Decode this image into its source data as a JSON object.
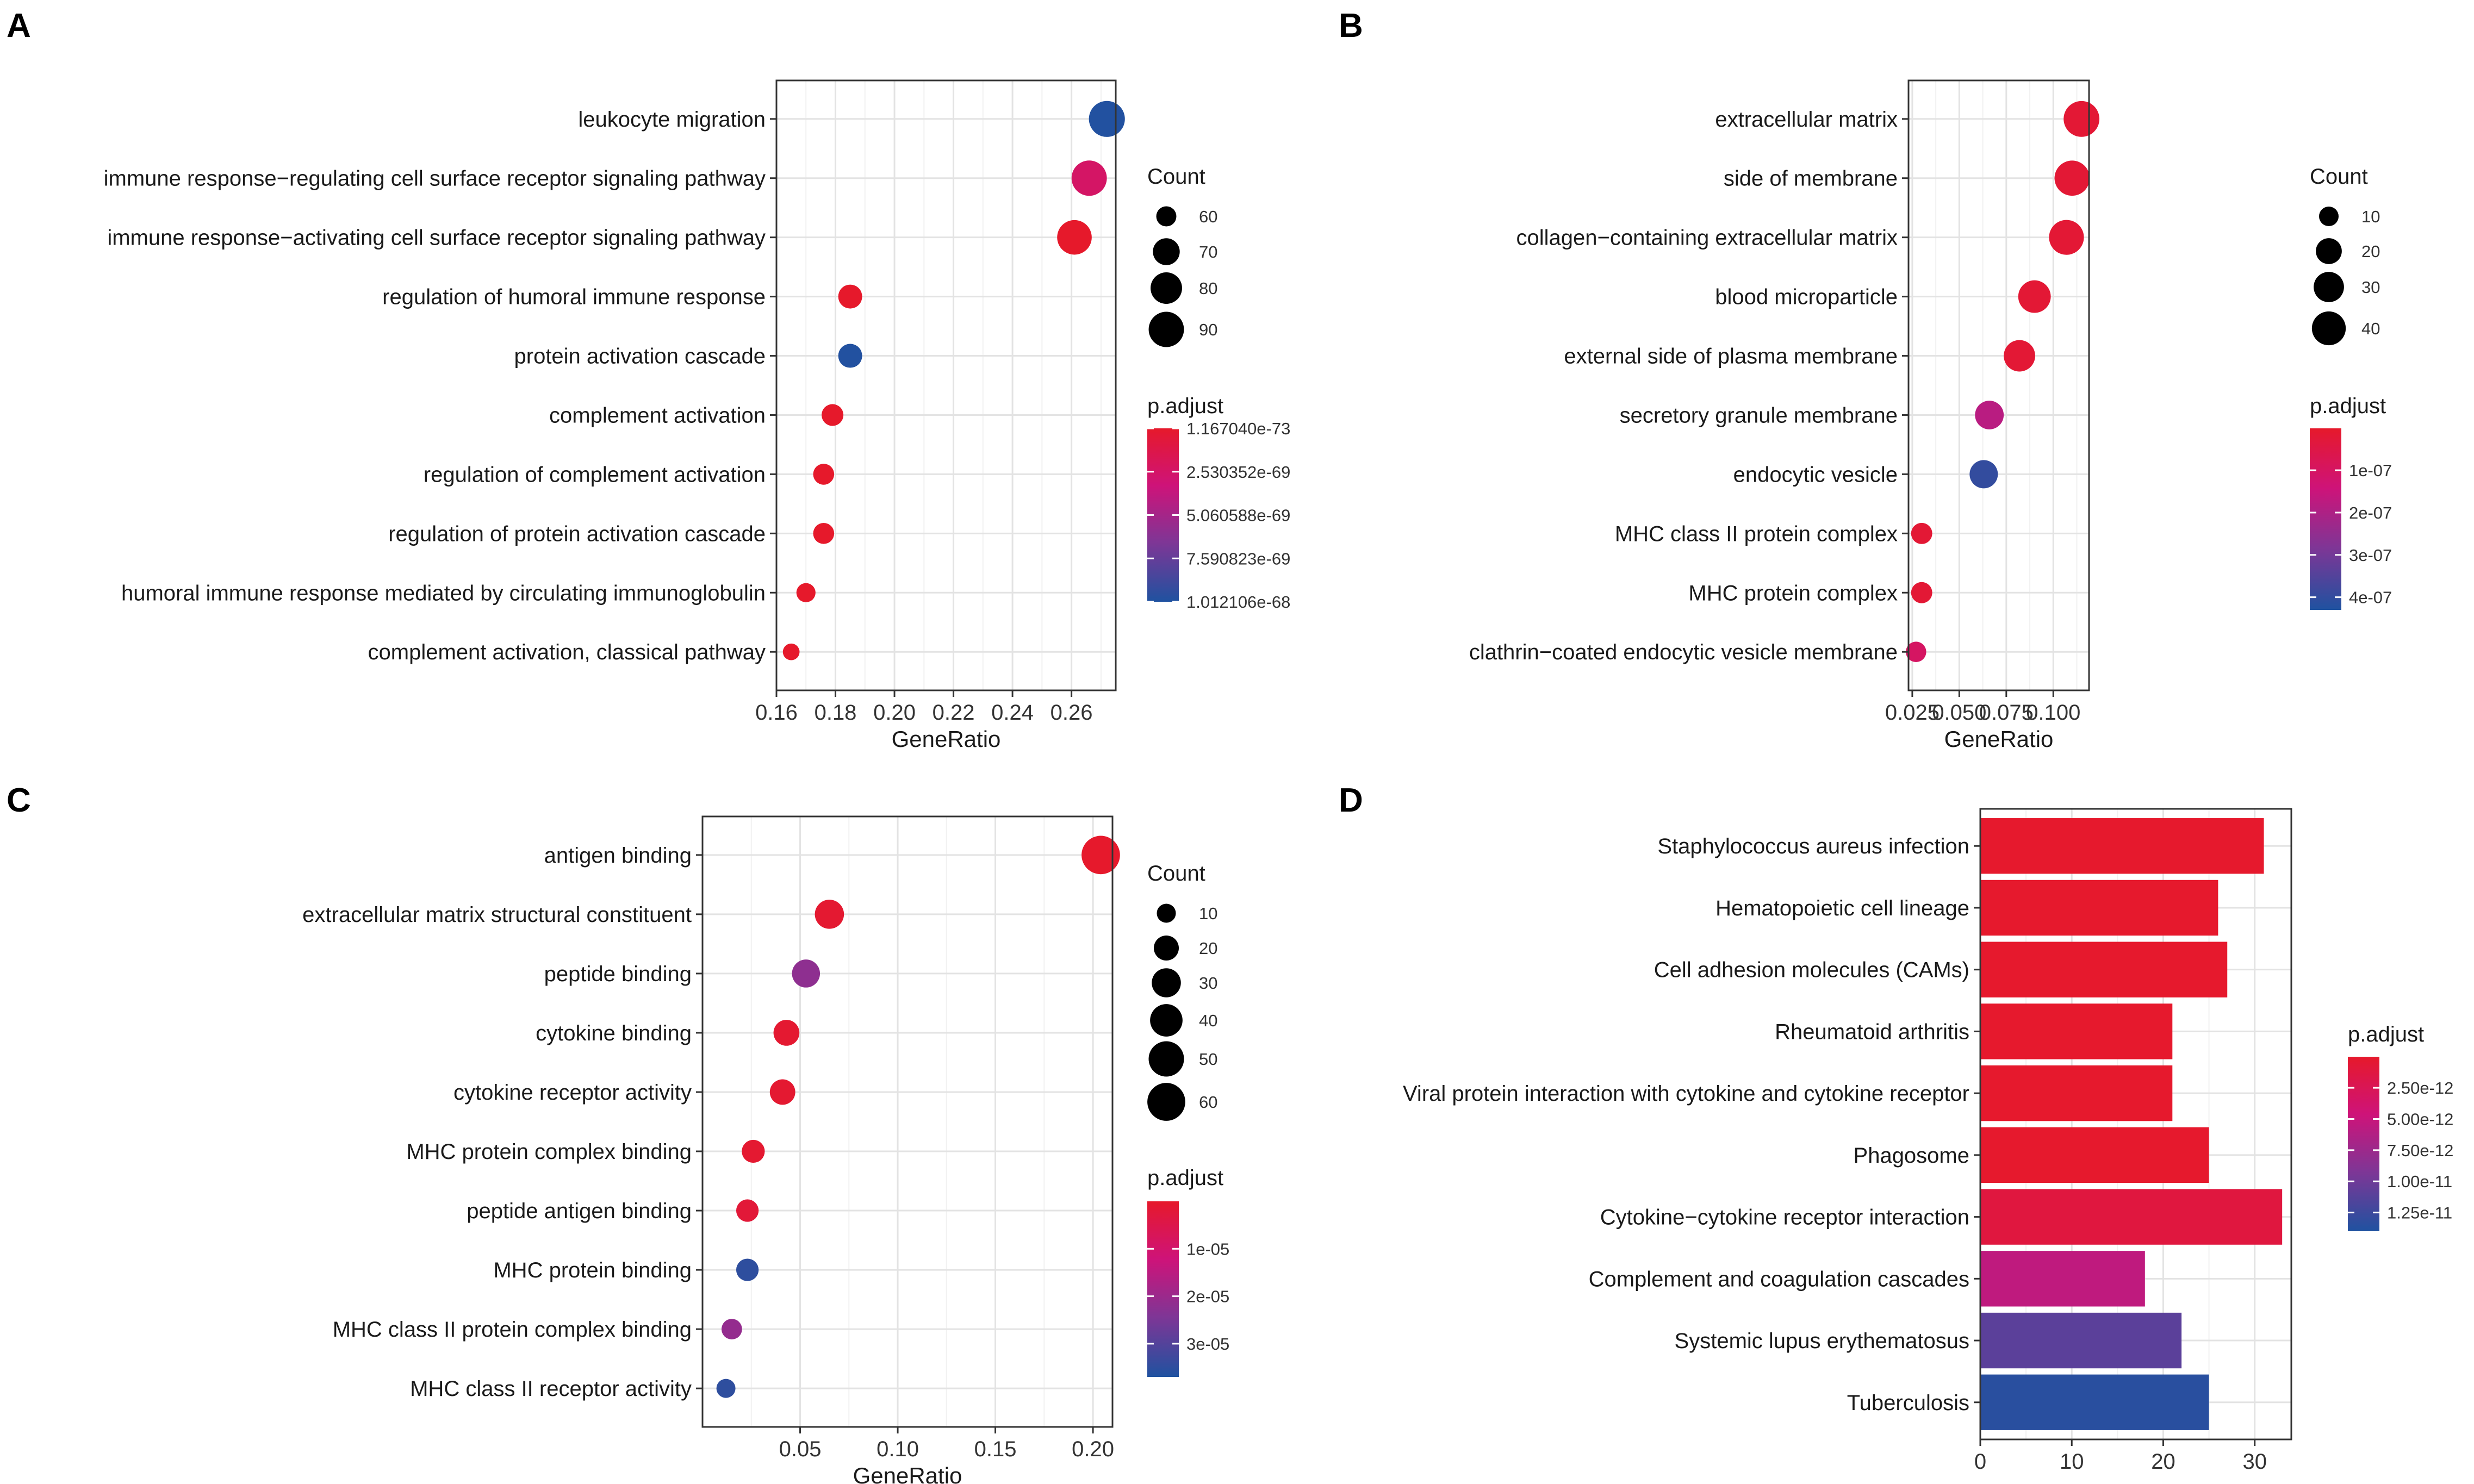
{
  "panel_letters": [
    "A",
    "B",
    "C",
    "D"
  ],
  "chart_data": [
    {
      "panel": "A",
      "type": "scatter",
      "xlabel": "GeneRatio",
      "ylabel": "",
      "xlim": [
        0.16,
        0.275
      ],
      "xticks": [
        0.16,
        0.18,
        0.2,
        0.22,
        0.24,
        0.26
      ],
      "xtick_labels": [
        "0.16",
        "0.18",
        "0.20",
        "0.22",
        "0.24",
        "0.26"
      ],
      "categories": [
        "leukocyte migration",
        "immune response−regulating cell surface receptor signaling pathway",
        "immune response−activating cell surface receptor signaling pathway",
        "regulation of humoral immune response",
        "protein activation cascade",
        "complement activation",
        "regulation of complement activation",
        "regulation of protein activation cascade",
        "humoral immune response mediated by circulating immunoglobulin",
        "complement activation, classical pathway"
      ],
      "x": [
        0.272,
        0.266,
        0.261,
        0.185,
        0.185,
        0.179,
        0.176,
        0.176,
        0.17,
        0.165
      ],
      "count": [
        92,
        90,
        88,
        65,
        65,
        62,
        61,
        61,
        59,
        57
      ],
      "p_adjust": [
        1e-68,
        2.5e-69,
        1.5e-73,
        1.5e-73,
        1e-68,
        1.5e-73,
        1.5e-73,
        1.5e-73,
        1.5e-73,
        1.5e-73
      ],
      "size_legend": {
        "title": "Count",
        "values": [
          60,
          70,
          80,
          90
        ],
        "labels": [
          "60",
          "70",
          "80",
          "90"
        ],
        "range": [
          55,
          95
        ]
      },
      "color_legend": {
        "title": "p.adjust",
        "min": 1.16704e-73,
        "max": 1.012106e-68,
        "ticks": [
          1.16704e-73,
          2.530352e-69,
          5.060588e-69,
          7.590823e-69,
          1.012106e-68
        ],
        "labels": [
          "1.167040e-73",
          "2.530352e-69",
          "5.060588e-69",
          "7.590823e-69",
          "1.012106e-68"
        ]
      }
    },
    {
      "panel": "B",
      "type": "scatter",
      "xlabel": "GeneRatio",
      "ylabel": "",
      "xlim": [
        0.023,
        0.119
      ],
      "xticks": [
        0.025,
        0.05,
        0.075,
        0.1
      ],
      "xtick_labels": [
        "0.025",
        "0.050",
        "0.075",
        "0.100"
      ],
      "categories": [
        "extracellular matrix",
        "side of membrane",
        "collagen−containing extracellular matrix",
        "blood microparticle",
        "external side of plasma membrane",
        "secretory granule membrane",
        "endocytic vesicle",
        "MHC class II protein complex",
        "MHC protein complex",
        "clathrin−coated endocytic vesicle membrane"
      ],
      "x": [
        0.115,
        0.11,
        0.107,
        0.09,
        0.082,
        0.066,
        0.063,
        0.03,
        0.03,
        0.027
      ],
      "count": [
        46,
        44,
        43,
        36,
        33,
        26,
        25,
        12,
        12,
        11
      ],
      "p_adjust": [
        2e-08,
        2e-08,
        2e-08,
        2e-08,
        2e-08,
        1.8e-07,
        4e-07,
        2e-08,
        2e-08,
        1e-07
      ],
      "size_legend": {
        "title": "Count",
        "values": [
          10,
          20,
          30,
          40
        ],
        "labels": [
          "10",
          "20",
          "30",
          "40"
        ],
        "range": [
          5,
          50
        ]
      },
      "color_legend": {
        "title": "p.adjust",
        "min": 1e-09,
        "max": 4.3e-07,
        "ticks": [
          1e-07,
          2e-07,
          3e-07,
          4e-07
        ],
        "labels": [
          "1e-07",
          "2e-07",
          "3e-07",
          "4e-07"
        ]
      }
    },
    {
      "panel": "C",
      "type": "scatter",
      "xlabel": "GeneRatio",
      "ylabel": "",
      "xlim": [
        0.0,
        0.21
      ],
      "xticks": [
        0.05,
        0.1,
        0.15,
        0.2
      ],
      "xtick_labels": [
        "0.05",
        "0.10",
        "0.15",
        "0.20"
      ],
      "categories": [
        "antigen binding",
        "extracellular matrix structural constituent",
        "peptide binding",
        "cytokine binding",
        "cytokine receptor activity",
        "MHC protein complex binding",
        "peptide antigen binding",
        "MHC protein binding",
        "MHC class II protein complex binding",
        "MHC class II receptor activity"
      ],
      "x": [
        0.204,
        0.065,
        0.053,
        0.043,
        0.041,
        0.026,
        0.023,
        0.023,
        0.015,
        0.012
      ],
      "count": [
        62,
        30,
        27,
        22,
        21,
        16,
        15,
        15,
        12,
        10
      ],
      "p_adjust": [
        1e-07,
        1e-06,
        2.2e-05,
        1e-06,
        1e-06,
        1e-06,
        2e-06,
        3.5e-05,
        2.1e-05,
        3.5e-05
      ],
      "size_legend": {
        "title": "Count",
        "values": [
          10,
          20,
          30,
          40,
          50,
          60
        ],
        "labels": [
          "10",
          "20",
          "30",
          "40",
          "50",
          "60"
        ],
        "range": [
          5,
          65
        ]
      },
      "color_legend": {
        "title": "p.adjust",
        "min": 1e-09,
        "max": 3.7e-05,
        "ticks": [
          1e-05,
          2e-05,
          3e-05
        ],
        "labels": [
          "1e-05",
          "2e-05",
          "3e-05"
        ]
      }
    },
    {
      "panel": "D",
      "type": "bar",
      "orientation": "horizontal",
      "xlabel": "",
      "ylabel": "",
      "xlim": [
        0,
        34
      ],
      "xticks": [
        0,
        10,
        20,
        30
      ],
      "xtick_labels": [
        "0",
        "10",
        "20",
        "30"
      ],
      "categories": [
        "Staphylococcus aureus infection",
        "Hematopoietic cell lineage",
        "Cell adhesion molecules (CAMs)",
        "Rheumatoid arthritis",
        "Viral protein interaction with cytokine and cytokine receptor",
        "Phagosome",
        "Cytokine−cytokine receptor interaction",
        "Complement and coagulation cascades",
        "Systemic lupus erythematosus",
        "Tuberculosis"
      ],
      "values": [
        31,
        26,
        27,
        21,
        21,
        25,
        33,
        18,
        22,
        25
      ],
      "p_adjust": [
        1e-13,
        1e-13,
        1e-13,
        1e-13,
        1e-13,
        1e-13,
        1.2e-12,
        5.5e-12,
        1.1e-11,
        1.35e-11
      ],
      "color_legend": {
        "title": "p.adjust",
        "min": 1e-14,
        "max": 1.4e-11,
        "ticks": [
          2.5e-12,
          5e-12,
          7.5e-12,
          1e-11,
          1.25e-11
        ],
        "labels": [
          "2.50e-12",
          "5.00e-12",
          "7.50e-12",
          "1.00e-11",
          "1.25e-11"
        ]
      }
    }
  ]
}
